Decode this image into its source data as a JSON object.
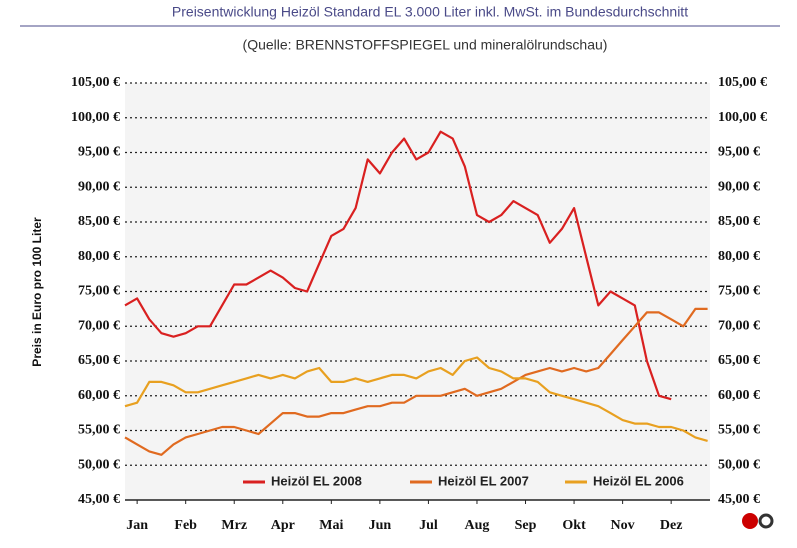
{
  "chart_data": {
    "type": "line",
    "title": "Preisentwicklung Heizöl Standard EL 3.000 Liter inkl. MwSt. im Bundesdurchschnitt",
    "subtitle": "(Quelle: BRENNSTOFFSPIEGEL und mineralölrundschau)",
    "y_label": "Preis in Euro pro 100 Liter",
    "x": [
      0.75,
      1,
      1.25,
      1.5,
      1.75,
      2,
      2.25,
      2.5,
      2.75,
      3,
      3.25,
      3.5,
      3.75,
      4,
      4.25,
      4.5,
      4.75,
      5,
      5.25,
      5.5,
      5.75,
      6,
      6.25,
      6.5,
      6.75,
      7,
      7.25,
      7.5,
      7.75,
      8,
      8.25,
      8.5,
      8.75,
      9,
      9.25,
      9.5,
      9.75,
      10,
      10.25,
      10.5,
      10.75,
      11,
      11.25,
      11.5,
      11.75,
      12,
      12.25,
      12.5,
      12.75
    ],
    "xlim": [
      0.75,
      12.8
    ],
    "xticks": [
      {
        "value": 1,
        "label": "Jan"
      },
      {
        "value": 2,
        "label": "Feb"
      },
      {
        "value": 3,
        "label": "Mrz"
      },
      {
        "value": 4,
        "label": "Apr"
      },
      {
        "value": 5,
        "label": "Mai"
      },
      {
        "value": 6,
        "label": "Jun"
      },
      {
        "value": 7,
        "label": "Jul"
      },
      {
        "value": 8,
        "label": "Aug"
      },
      {
        "value": 9,
        "label": "Sep"
      },
      {
        "value": 10,
        "label": "Okt"
      },
      {
        "value": 11,
        "label": "Nov"
      },
      {
        "value": 12,
        "label": "Dez"
      }
    ],
    "ylim": [
      45,
      105
    ],
    "yticks": [
      {
        "value": 45,
        "label": "45,00 €"
      },
      {
        "value": 50,
        "label": "50,00 €"
      },
      {
        "value": 55,
        "label": "55,00 €"
      },
      {
        "value": 60,
        "label": "60,00 €"
      },
      {
        "value": 65,
        "label": "65,00 €"
      },
      {
        "value": 70,
        "label": "70,00 €"
      },
      {
        "value": 75,
        "label": "75,00 €"
      },
      {
        "value": 80,
        "label": "80,00 €"
      },
      {
        "value": 85,
        "label": "85,00 €"
      },
      {
        "value": 90,
        "label": "90,00 €"
      },
      {
        "value": 95,
        "label": "95,00 €"
      },
      {
        "value": 100,
        "label": "100,00 €"
      },
      {
        "value": 105,
        "label": "105,00 €"
      }
    ],
    "y2lim": [
      45,
      105
    ],
    "y2ticks": [
      {
        "value": 45,
        "label": "45,00 €"
      },
      {
        "value": 50,
        "label": "50,00 €"
      },
      {
        "value": 55,
        "label": "55,00 €"
      },
      {
        "value": 60,
        "label": "60,00 €"
      },
      {
        "value": 65,
        "label": "65,00 €"
      },
      {
        "value": 70,
        "label": "70,00 €"
      },
      {
        "value": 75,
        "label": "75,00 €"
      },
      {
        "value": 80,
        "label": "80,00 €"
      },
      {
        "value": 85,
        "label": "85,00 €"
      },
      {
        "value": 90,
        "label": "90,00 €"
      },
      {
        "value": 95,
        "label": "95,00 €"
      },
      {
        "value": 100,
        "label": "100,00 €"
      },
      {
        "value": 105,
        "label": "105,00 €"
      }
    ],
    "grid": true,
    "legend": "bottom",
    "series": [
      {
        "name": "Heizöl EL 2008",
        "color": "#d92020",
        "values": [
          73,
          74,
          71,
          69,
          68.5,
          69,
          70,
          70,
          73,
          76,
          76,
          77,
          78,
          77,
          75.5,
          75,
          79,
          83,
          84,
          87,
          94,
          92,
          95,
          97,
          94,
          95,
          98,
          97,
          93,
          86,
          85,
          86,
          88,
          87,
          86,
          82,
          84,
          87,
          80,
          73,
          75,
          74,
          73,
          65,
          60,
          59.5,
          null,
          null,
          null
        ]
      },
      {
        "name": "Heizöl EL 2007",
        "color": "#e06a20",
        "values": [
          54,
          53,
          52,
          51.5,
          53,
          54,
          54.5,
          55,
          55.5,
          55.5,
          55,
          54.5,
          56,
          57.5,
          57.5,
          57,
          57,
          57.5,
          57.5,
          58,
          58.5,
          58.5,
          59,
          59,
          60,
          60,
          60,
          60.5,
          61,
          60,
          60.5,
          61,
          62,
          63,
          63.5,
          64,
          63.5,
          64,
          63.5,
          64,
          66,
          68,
          70,
          72,
          72,
          71,
          70,
          72.5,
          72.5
        ]
      },
      {
        "name": "Heizöl EL 2006",
        "color": "#e8a020",
        "values": [
          58.5,
          59,
          62,
          62,
          61.5,
          60.5,
          60.5,
          61,
          61.5,
          62,
          62.5,
          63,
          62.5,
          63,
          62.5,
          63.5,
          64,
          62,
          62,
          62.5,
          62,
          62.5,
          63,
          63,
          62.5,
          63.5,
          64,
          63,
          65,
          65.5,
          64,
          63.5,
          62.5,
          62.5,
          62,
          60.5,
          60,
          59.5,
          59,
          58.5,
          57.5,
          56.5,
          56,
          56,
          55.5,
          55.5,
          55,
          54,
          53.5
        ]
      }
    ]
  }
}
